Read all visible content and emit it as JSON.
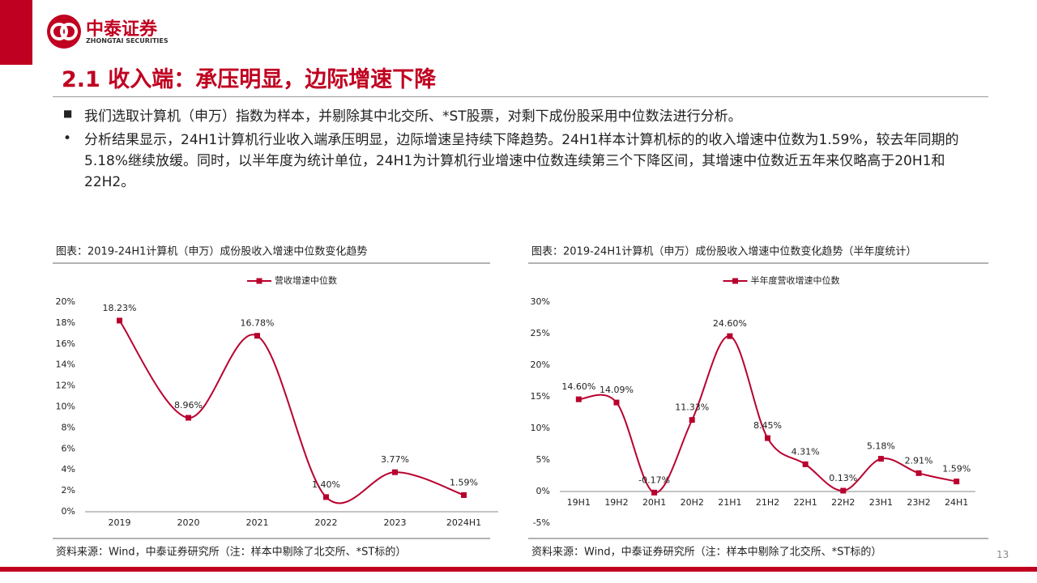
{
  "header": {
    "logo_name": "中泰证券",
    "logo_sub": "ZHONGTAI SECURITIES",
    "title": "2.1 收入端：承压明显，边际增速下降"
  },
  "bullets": [
    "我们选取计算机（申万）指数为样本，并剔除其中北交所、*ST股票，对剩下成份股采用中位数法进行分析。",
    "分析结果显示，24H1计算机行业收入端承压明显，边际增速呈持续下降趋势。24H1样本计算机标的的收入增速中位数为1.59%，较去年同期的5.18%继续放缓。同时，以半年度为统计单位，24H1为计算机行业增速中位数连续第三个下降区间，其增速中位数近五年来仅略高于20H1和22H2。"
  ],
  "chart_data": [
    {
      "type": "line",
      "title": "图表：2019-24H1计算机（申万）成份股收入增速中位数变化趋势",
      "source": "资料来源：Wind，中泰证券研究所（注：样本中剔除了北交所、*ST标的）",
      "categories": [
        "2019",
        "2020",
        "2021",
        "2022",
        "2023",
        "2024H1"
      ],
      "series": [
        {
          "name": "营收增速中位数",
          "color": "#b8002e",
          "values": [
            18.23,
            8.96,
            16.78,
            1.4,
            3.77,
            1.59
          ],
          "value_labels": [
            "18.23%",
            "8.96%",
            "16.78%",
            "1.40%",
            "3.77%",
            "1.59%"
          ]
        }
      ],
      "ylim": [
        0,
        20
      ],
      "yticks": [
        {
          "value": 0,
          "label": "0%"
        },
        {
          "value": 2,
          "label": "2%"
        },
        {
          "value": 4,
          "label": "4%"
        },
        {
          "value": 6,
          "label": "6%"
        },
        {
          "value": 8,
          "label": "8%"
        },
        {
          "value": 10,
          "label": "10%"
        },
        {
          "value": 12,
          "label": "12%"
        },
        {
          "value": 14,
          "label": "14%"
        },
        {
          "value": 16,
          "label": "16%"
        },
        {
          "value": 18,
          "label": "18%"
        },
        {
          "value": 20,
          "label": "20%"
        }
      ],
      "grid": false,
      "legend": "top"
    },
    {
      "type": "line",
      "title": "图表：2019-24H1计算机（申万）成份股收入增速中位数变化趋势（半年度统计）",
      "source": "资料来源：Wind，中泰证券研究所（注：样本中剔除了北交所、*ST标的）",
      "categories": [
        "19H1",
        "19H2",
        "20H1",
        "20H2",
        "21H1",
        "21H2",
        "22H1",
        "22H2",
        "23H1",
        "23H2",
        "24H1"
      ],
      "series": [
        {
          "name": "半年度营收增速中位数",
          "color": "#b8002e",
          "values": [
            14.6,
            14.09,
            -0.17,
            11.33,
            24.6,
            8.45,
            4.31,
            0.13,
            5.18,
            2.91,
            1.59
          ],
          "value_labels": [
            "14.60%",
            "14.09%",
            "-0.17%",
            "11.33%",
            "24.60%",
            "8.45%",
            "4.31%",
            "0.13%",
            "5.18%",
            "2.91%",
            "1.59%"
          ]
        }
      ],
      "ylim": [
        -5,
        30
      ],
      "yticks": [
        {
          "value": -5,
          "label": "-5%"
        },
        {
          "value": 0,
          "label": "0%"
        },
        {
          "value": 5,
          "label": "5%"
        },
        {
          "value": 10,
          "label": "10%"
        },
        {
          "value": 15,
          "label": "15%"
        },
        {
          "value": 20,
          "label": "20%"
        },
        {
          "value": 25,
          "label": "25%"
        },
        {
          "value": 30,
          "label": "30%"
        }
      ],
      "grid": false,
      "legend": "top"
    }
  ],
  "page_number": "13"
}
